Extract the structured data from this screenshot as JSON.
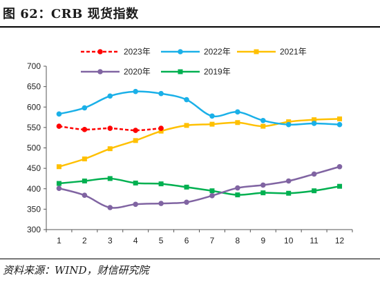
{
  "header": {
    "title": "图 62：CRB 现货指数"
  },
  "footer": {
    "source": "资料来源：WIND，财信研究院"
  },
  "chart_data": {
    "type": "line",
    "title": "",
    "xlabel": "",
    "ylabel": "",
    "x": [
      1,
      2,
      3,
      4,
      5,
      6,
      7,
      8,
      9,
      10,
      11,
      12
    ],
    "ylim": [
      300,
      700
    ],
    "yticks": [
      300,
      350,
      400,
      450,
      500,
      550,
      600,
      650,
      700
    ],
    "grid": false,
    "legend_position": "top",
    "series": [
      {
        "name": "2023年",
        "color": "#ff0000",
        "dashed": true,
        "marker": "circle",
        "values": [
          553,
          545,
          548,
          543,
          548,
          null,
          null,
          null,
          null,
          null,
          null,
          null
        ]
      },
      {
        "name": "2022年",
        "color": "#1ab0e8",
        "dashed": false,
        "marker": "circle",
        "values": [
          583,
          598,
          627,
          638,
          633,
          618,
          578,
          588,
          567,
          557,
          560,
          557
        ]
      },
      {
        "name": "2021年",
        "color": "#ffc000",
        "dashed": false,
        "marker": "square",
        "values": [
          454,
          473,
          498,
          518,
          541,
          555,
          558,
          562,
          553,
          564,
          569,
          571
        ]
      },
      {
        "name": "2020年",
        "color": "#8064a2",
        "dashed": false,
        "marker": "circle",
        "values": [
          401,
          384,
          354,
          362,
          364,
          367,
          383,
          402,
          409,
          419,
          436,
          454
        ]
      },
      {
        "name": "2019年",
        "color": "#00b050",
        "dashed": false,
        "marker": "square",
        "values": [
          413,
          419,
          425,
          414,
          412,
          404,
          395,
          385,
          390,
          389,
          395,
          406
        ]
      }
    ]
  }
}
